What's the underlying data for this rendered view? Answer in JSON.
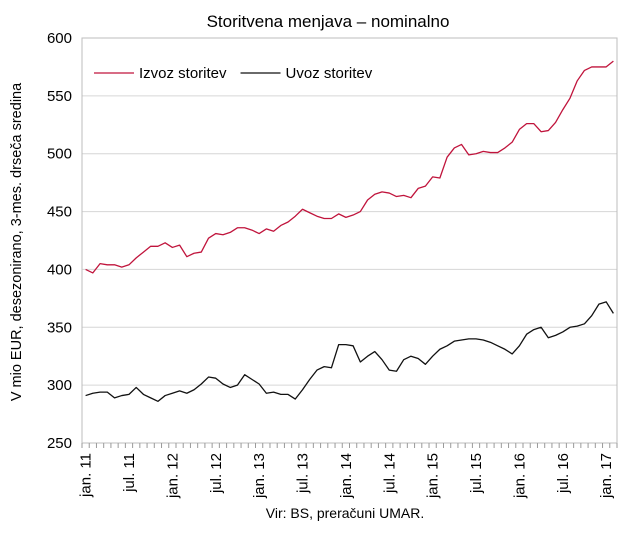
{
  "chart_data": {
    "type": "line",
    "title": "Storitvena menjava – nominalno",
    "ylabel": "V mio EUR, desezonirano, 3-mes. drseča sredina",
    "xlabel": "",
    "source_note": "Vir: BS, preračuni UMAR.",
    "ylim": [
      250,
      600
    ],
    "yticks": [
      250,
      300,
      350,
      400,
      450,
      500,
      550,
      600
    ],
    "xlim": [
      "2011-01",
      "2017-02"
    ],
    "xtick_labels": [
      "jan. 11",
      "jul. 11",
      "jan. 12",
      "jul. 12",
      "jan. 13",
      "jul. 13",
      "jan. 14",
      "jul. 14",
      "jan. 15",
      "jul. 15",
      "jan. 16",
      "jul. 16",
      "jan. 17"
    ],
    "grid": true,
    "legend_position": "top-left",
    "x": [
      "2011-01",
      "2011-02",
      "2011-03",
      "2011-04",
      "2011-05",
      "2011-06",
      "2011-07",
      "2011-08",
      "2011-09",
      "2011-10",
      "2011-11",
      "2011-12",
      "2012-01",
      "2012-02",
      "2012-03",
      "2012-04",
      "2012-05",
      "2012-06",
      "2012-07",
      "2012-08",
      "2012-09",
      "2012-10",
      "2012-11",
      "2012-12",
      "2013-01",
      "2013-02",
      "2013-03",
      "2013-04",
      "2013-05",
      "2013-06",
      "2013-07",
      "2013-08",
      "2013-09",
      "2013-10",
      "2013-11",
      "2013-12",
      "2014-01",
      "2014-02",
      "2014-03",
      "2014-04",
      "2014-05",
      "2014-06",
      "2014-07",
      "2014-08",
      "2014-09",
      "2014-10",
      "2014-11",
      "2014-12",
      "2015-01",
      "2015-02",
      "2015-03",
      "2015-04",
      "2015-05",
      "2015-06",
      "2015-07",
      "2015-08",
      "2015-09",
      "2015-10",
      "2015-11",
      "2015-12",
      "2016-01",
      "2016-02",
      "2016-03",
      "2016-04",
      "2016-05",
      "2016-06",
      "2016-07",
      "2016-08",
      "2016-09",
      "2016-10",
      "2016-11",
      "2016-12",
      "2017-01",
      "2017-02"
    ],
    "series": [
      {
        "name": "Izvoz storitev",
        "color": "#c0143c",
        "values": [
          400,
          397,
          405,
          404,
          404,
          402,
          404,
          410,
          415,
          420,
          420,
          423,
          419,
          421,
          411,
          414,
          415,
          427,
          431,
          430,
          432,
          436,
          436,
          434,
          431,
          435,
          433,
          438,
          441,
          446,
          452,
          449,
          446,
          444,
          444,
          448,
          445,
          447,
          450,
          460,
          465,
          467,
          466,
          463,
          464,
          462,
          470,
          472,
          480,
          479,
          497,
          505,
          508,
          499,
          500,
          502,
          501,
          501,
          505,
          510,
          521,
          526,
          526,
          519,
          520,
          527,
          538,
          548,
          563,
          572,
          575,
          575,
          575,
          580
        ]
      },
      {
        "name": "Uvoz storitev",
        "color": "#111111",
        "values": [
          291,
          293,
          294,
          294,
          289,
          291,
          292,
          298,
          292,
          289,
          286,
          291,
          293,
          295,
          293,
          296,
          301,
          307,
          306,
          301,
          298,
          300,
          309,
          305,
          301,
          293,
          294,
          292,
          292,
          288,
          296,
          305,
          313,
          316,
          315,
          335,
          335,
          334,
          320,
          325,
          329,
          322,
          313,
          312,
          322,
          325,
          323,
          318,
          325,
          331,
          334,
          338,
          339,
          340,
          340,
          339,
          337,
          334,
          331,
          327,
          334,
          344,
          348,
          350,
          341,
          343,
          346,
          350,
          351,
          353,
          360,
          370,
          372,
          362
        ]
      }
    ]
  }
}
